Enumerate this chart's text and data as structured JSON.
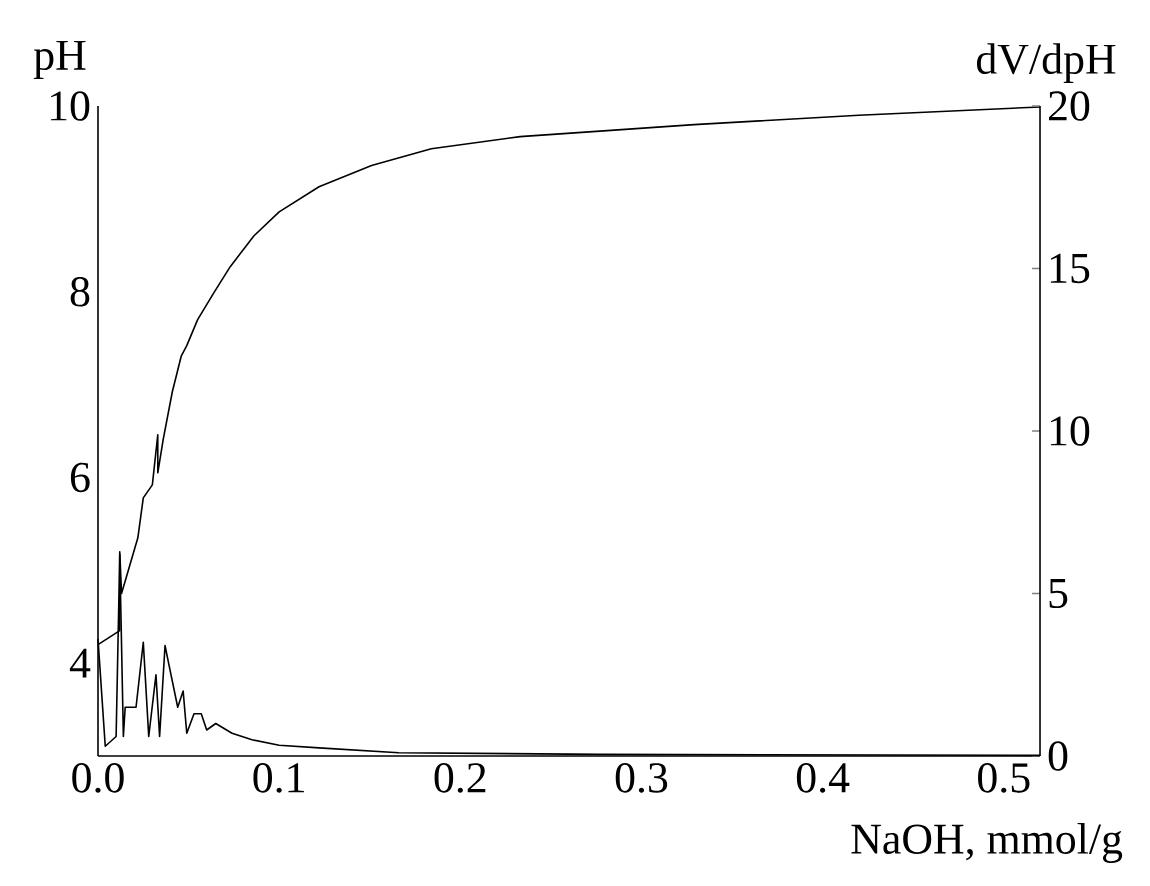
{
  "chart_data": {
    "type": "line",
    "xlabel": "NaOH, mmol/g",
    "ylabel": "pH",
    "y2label": "dV/dpH",
    "xlim": [
      0,
      0.52
    ],
    "xticks": [
      {
        "value": 0,
        "label": "0.0"
      },
      {
        "value": 0.1,
        "label": "0.1"
      },
      {
        "value": 0.2,
        "label": "0.2"
      },
      {
        "value": 0.3,
        "label": "0.3"
      },
      {
        "value": 0.4,
        "label": "0.4"
      },
      {
        "value": 0.5,
        "label": "0.5"
      }
    ],
    "ylim": [
      3,
      10
    ],
    "yticks": [
      4,
      6,
      8,
      10
    ],
    "y2lim": [
      0,
      20
    ],
    "y2ticks": [
      0,
      5,
      10,
      15,
      20
    ],
    "grid": false,
    "marker": "none",
    "line_style": "solid",
    "series": [
      {
        "color": "#000000",
        "x": [
          0,
          0.012,
          0.012,
          0.013,
          0.022,
          0.025,
          0.03,
          0.033,
          0.033,
          0.036,
          0.041,
          0.046,
          0.049,
          0.055,
          0.064,
          0.073,
          0.086,
          0.1,
          0.122,
          0.151,
          0.184,
          0.233,
          0.255,
          0.329,
          0.42,
          0.52
        ],
        "values": [
          4.2,
          4.35,
          5.2,
          4.75,
          5.35,
          5.78,
          5.92,
          6.46,
          6.05,
          6.41,
          6.92,
          7.31,
          7.42,
          7.7,
          7.99,
          8.27,
          8.6,
          8.86,
          9.13,
          9.36,
          9.54,
          9.67,
          9.7,
          9.8,
          9.9,
          9.99
        ]
      },
      {
        "color": "#000000",
        "axis": "y2",
        "x": [
          0,
          0.004,
          0.01,
          0.012,
          0.014,
          0.015,
          0.021,
          0.025,
          0.028,
          0.032,
          0.034,
          0.037,
          0.039,
          0.044,
          0.047,
          0.049,
          0.053,
          0.057,
          0.06,
          0.065,
          0.074,
          0.085,
          0.1,
          0.122,
          0.166,
          0.277,
          0.52
        ],
        "values": [
          3.6,
          0.3,
          0.6,
          6.2,
          0.6,
          1.5,
          1.5,
          3.5,
          0.6,
          2.5,
          0.6,
          3.4,
          2.85,
          1.5,
          2.0,
          0.7,
          1.3,
          1.3,
          0.8,
          1.0,
          0.7,
          0.5,
          0.33,
          0.25,
          0.1,
          0.05,
          0.02
        ]
      }
    ]
  }
}
